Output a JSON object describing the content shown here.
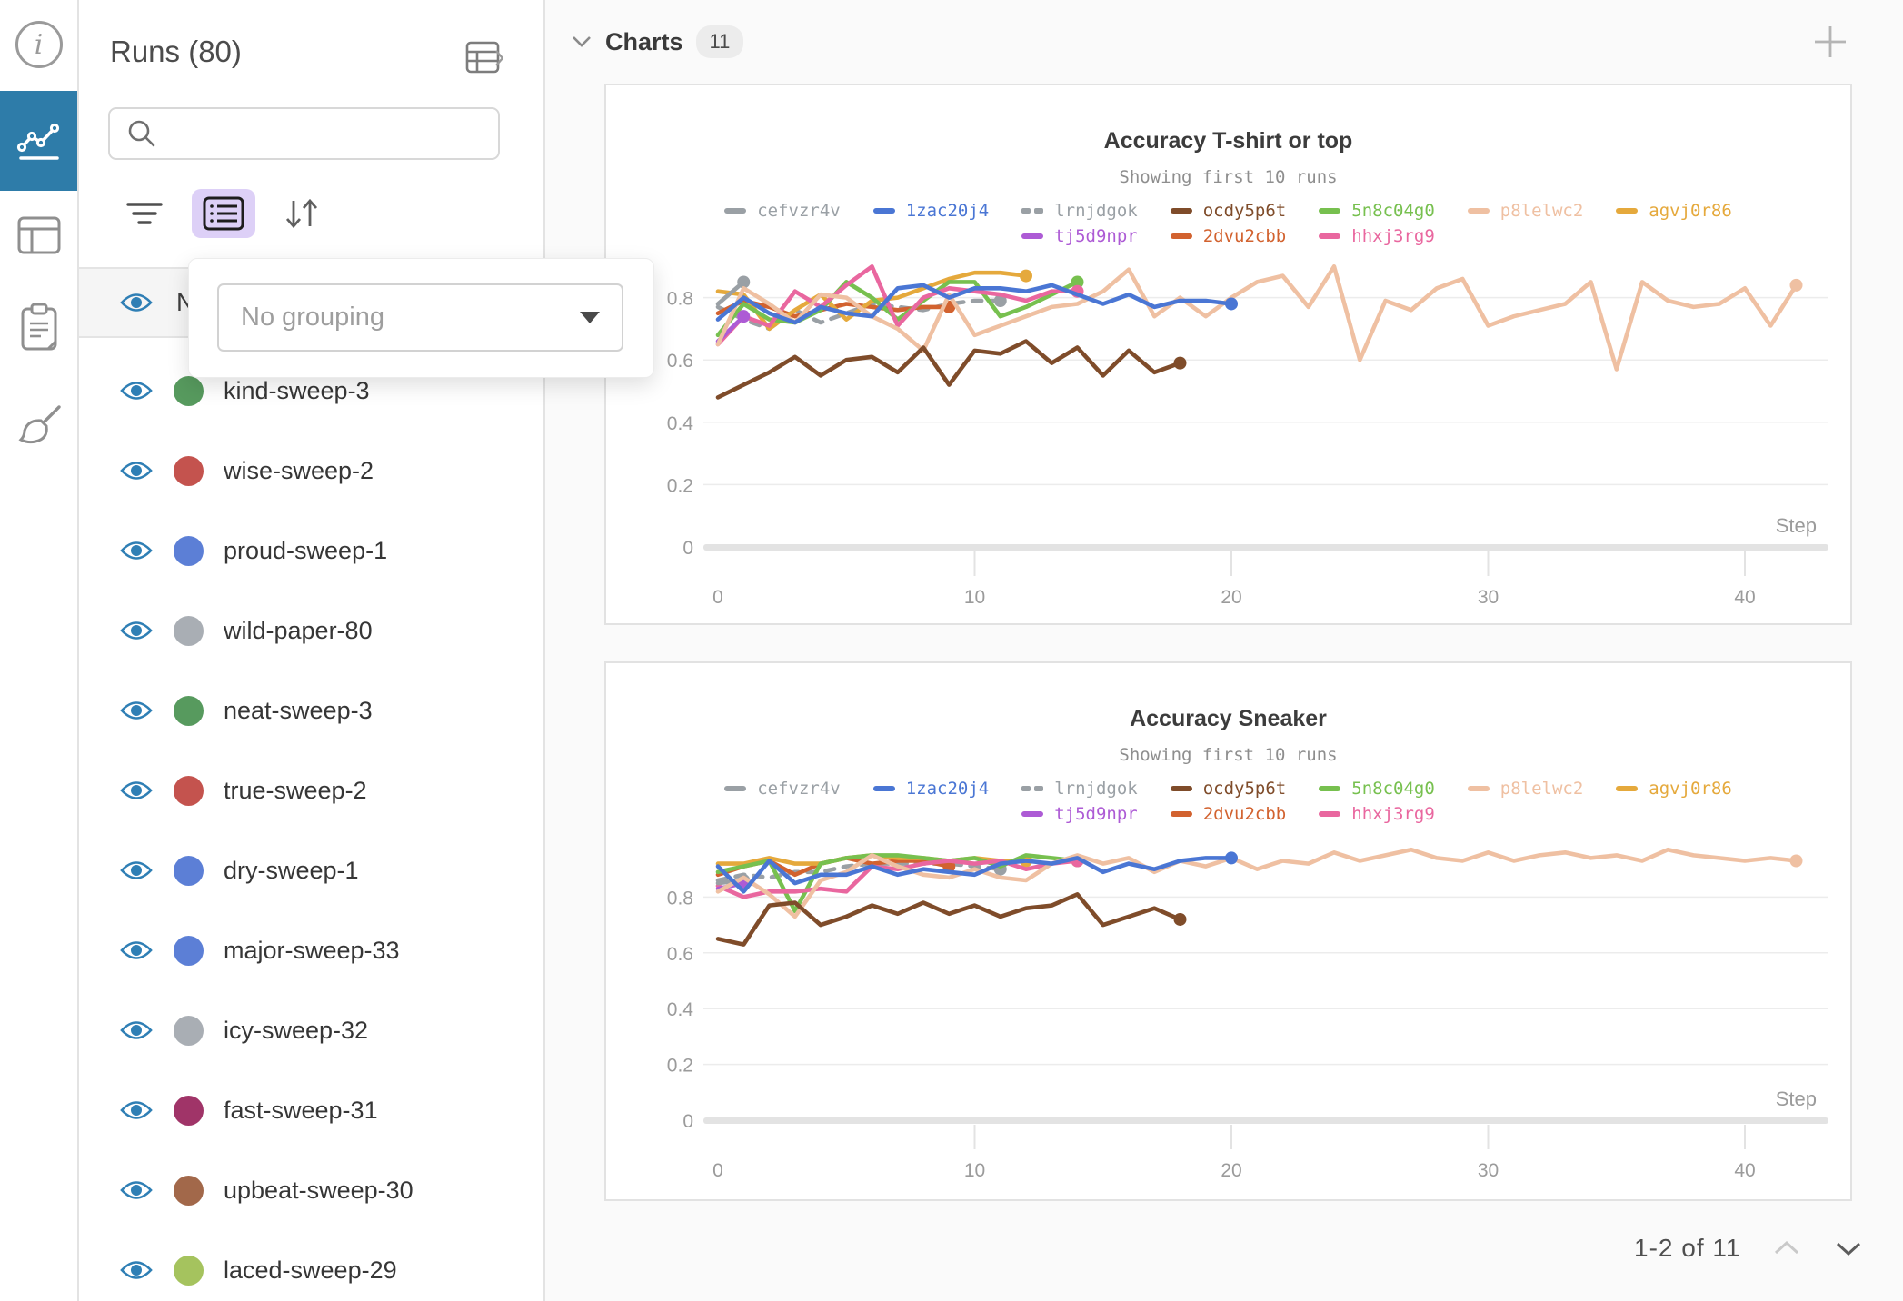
{
  "rail": {
    "icons": [
      "info-icon",
      "panels-chart-icon",
      "runs-table-icon",
      "notes-icon",
      "sweep-broom-icon"
    ],
    "active_icon": "panels-chart-icon",
    "active_color": "#2e7ca9"
  },
  "runs_panel": {
    "title": "Runs (80)",
    "expand_icon": "table-expand-icon",
    "search": {
      "placeholder": ""
    },
    "toolbar": {
      "icons": [
        "filter-icon",
        "list-settings-icon",
        "sort-icon"
      ],
      "active_bg": "#ddd0f7"
    },
    "grouping_popup": {
      "placeholder": "No grouping"
    },
    "header_row": {
      "label": "Name"
    },
    "runs": [
      {
        "name": "kind-sweep-3",
        "color": "#579a5e"
      },
      {
        "name": "wise-sweep-2",
        "color": "#c4534e"
      },
      {
        "name": "proud-sweep-1",
        "color": "#5c7fd6"
      },
      {
        "name": "wild-paper-80",
        "color": "#a9aeb4"
      },
      {
        "name": "neat-sweep-3",
        "color": "#579a5e"
      },
      {
        "name": "true-sweep-2",
        "color": "#c4534e"
      },
      {
        "name": "dry-sweep-1",
        "color": "#5c7fd6"
      },
      {
        "name": "major-sweep-33",
        "color": "#5c7fd6"
      },
      {
        "name": "icy-sweep-32",
        "color": "#a9aeb4"
      },
      {
        "name": "fast-sweep-31",
        "color": "#a03468"
      },
      {
        "name": "upbeat-sweep-30",
        "color": "#a2684a"
      },
      {
        "name": "laced-sweep-29",
        "color": "#a5c35e"
      }
    ]
  },
  "charts_section": {
    "title": "Charts",
    "count": "11",
    "add_icon": "plus-icon",
    "pagination": {
      "label": "1-2 of 11",
      "prev_icon": "chevron-up-icon",
      "next_icon": "chevron-down-icon"
    }
  },
  "palette": {
    "cefvzr4v": "#9aa0a5",
    "1zac20j4": "#4a76d4",
    "lrnjdgok": "#9aa0a5",
    "ocdy5p6t": "#7f4c2a",
    "5n8c04g0": "#77c04f",
    "p8lelwc2": "#efc0a2",
    "agvj0r86": "#e5a93c",
    "tj5d9npr": "#ad5bd5",
    "2dvu2cbb": "#d2622f",
    "hhxj3rg9": "#e9679f"
  },
  "chart_data": [
    {
      "type": "line",
      "title": "Accuracy T-shirt or top",
      "subtitle": "Showing first 10 runs",
      "xlabel": "Step",
      "xticks": [
        0,
        10,
        20,
        30,
        40
      ],
      "yticks": [
        0,
        0.2,
        0.4,
        0.6,
        0.8
      ],
      "xlim": [
        0,
        43
      ],
      "ylim": [
        0,
        0.95
      ],
      "grid": true,
      "legend_position": "top",
      "legend_rows": [
        [
          "cefvzr4v",
          "1zac20j4",
          "lrnjdgok",
          "ocdy5p6t",
          "5n8c04g0",
          "p8lelwc2",
          "agvj0r86"
        ],
        [
          "tj5d9npr",
          "2dvu2cbb",
          "hhxj3rg9"
        ]
      ],
      "series": [
        {
          "name": "lrnjdgok",
          "dash": true,
          "values": [
            0.77,
            0.73,
            0.7,
            0.76,
            0.72,
            0.75,
            0.78,
            0.77,
            0.76,
            0.78,
            0.79,
            0.79
          ]
        },
        {
          "name": "2dvu2cbb",
          "values": [
            0.75,
            0.79,
            0.77,
            0.74,
            0.76,
            0.78,
            0.77,
            0.76,
            0.77,
            0.77
          ]
        },
        {
          "name": "agvj0r86",
          "values": [
            0.82,
            0.81,
            0.7,
            0.76,
            0.81,
            0.73,
            0.79,
            0.8,
            0.83,
            0.86,
            0.88,
            0.88,
            0.87
          ]
        },
        {
          "name": "5n8c04g0",
          "values": [
            0.68,
            0.78,
            0.73,
            0.72,
            0.76,
            0.85,
            0.8,
            0.73,
            0.79,
            0.85,
            0.85,
            0.74,
            0.77,
            0.81,
            0.85
          ]
        },
        {
          "name": "hhxj3rg9",
          "values": [
            0.65,
            0.74,
            0.71,
            0.82,
            0.77,
            0.84,
            0.9,
            0.71,
            0.8,
            0.83,
            0.82,
            0.81,
            0.79,
            0.82,
            0.82
          ]
        },
        {
          "name": "cefvzr4v",
          "values": [
            0.78,
            0.85
          ]
        },
        {
          "name": "tj5d9npr",
          "values": [
            0.66,
            0.74
          ]
        },
        {
          "name": "p8lelwc2",
          "values": [
            0.65,
            0.83,
            0.78,
            0.72,
            0.81,
            0.8,
            0.74,
            0.7,
            0.63,
            0.81,
            0.68,
            0.71,
            0.74,
            0.77,
            0.78,
            0.82,
            0.89,
            0.74,
            0.8,
            0.74,
            0.8,
            0.85,
            0.87,
            0.77,
            0.9,
            0.6,
            0.79,
            0.76,
            0.83,
            0.86,
            0.71,
            0.74,
            0.76,
            0.78,
            0.85,
            0.57,
            0.85,
            0.79,
            0.77,
            0.78,
            0.83,
            0.71,
            0.84
          ]
        },
        {
          "name": "ocdy5p6t",
          "values": [
            0.48,
            0.52,
            0.56,
            0.61,
            0.55,
            0.6,
            0.61,
            0.56,
            0.64,
            0.52,
            0.63,
            0.62,
            0.66,
            0.59,
            0.64,
            0.55,
            0.63,
            0.56,
            0.59
          ]
        },
        {
          "name": "1zac20j4",
          "values": [
            0.73,
            0.8,
            0.75,
            0.72,
            0.77,
            0.75,
            0.74,
            0.83,
            0.84,
            0.8,
            0.83,
            0.83,
            0.82,
            0.84,
            0.81,
            0.78,
            0.81,
            0.77,
            0.79,
            0.79,
            0.78
          ]
        }
      ]
    },
    {
      "type": "line",
      "title": "Accuracy Sneaker",
      "subtitle": "Showing first 10 runs",
      "xlabel": "Step",
      "xticks": [
        0,
        10,
        20,
        30,
        40
      ],
      "yticks": [
        0,
        0.2,
        0.4,
        0.6,
        0.8
      ],
      "xlim": [
        0,
        43
      ],
      "ylim": [
        0,
        1.0
      ],
      "grid": true,
      "legend_position": "top",
      "legend_rows": [
        [
          "cefvzr4v",
          "1zac20j4",
          "lrnjdgok",
          "ocdy5p6t",
          "5n8c04g0",
          "p8lelwc2",
          "agvj0r86"
        ],
        [
          "tj5d9npr",
          "2dvu2cbb",
          "hhxj3rg9"
        ]
      ],
      "series": [
        {
          "name": "lrnjdgok",
          "dash": true,
          "values": [
            0.86,
            0.88,
            0.87,
            0.89,
            0.89,
            0.91,
            0.92,
            0.92,
            0.92,
            0.92,
            0.91,
            0.9
          ]
        },
        {
          "name": "2dvu2cbb",
          "values": [
            0.88,
            0.91,
            0.93,
            0.88,
            0.92,
            0.94,
            0.92,
            0.93,
            0.93,
            0.91
          ]
        },
        {
          "name": "agvj0r86",
          "values": [
            0.92,
            0.92,
            0.94,
            0.92,
            0.92,
            0.94,
            0.95,
            0.94,
            0.94,
            0.93,
            0.94,
            0.93,
            0.93
          ]
        },
        {
          "name": "5n8c04g0",
          "values": [
            0.89,
            0.91,
            0.93,
            0.75,
            0.92,
            0.94,
            0.95,
            0.95,
            0.94,
            0.93,
            0.94,
            0.91,
            0.95,
            0.94,
            0.93
          ]
        },
        {
          "name": "hhxj3rg9",
          "values": [
            0.84,
            0.8,
            0.82,
            0.82,
            0.83,
            0.82,
            0.91,
            0.9,
            0.92,
            0.93,
            0.92,
            0.93,
            0.9,
            0.92,
            0.93
          ]
        },
        {
          "name": "cefvzr4v",
          "values": [
            0.85,
            0.86
          ]
        },
        {
          "name": "tj5d9npr",
          "values": [
            0.83,
            0.85
          ]
        },
        {
          "name": "p8lelwc2",
          "values": [
            0.82,
            0.87,
            0.81,
            0.73,
            0.86,
            0.89,
            0.95,
            0.91,
            0.88,
            0.87,
            0.9,
            0.87,
            0.86,
            0.92,
            0.95,
            0.92,
            0.94,
            0.89,
            0.93,
            0.91,
            0.94,
            0.9,
            0.93,
            0.92,
            0.96,
            0.93,
            0.95,
            0.97,
            0.94,
            0.93,
            0.96,
            0.93,
            0.95,
            0.96,
            0.94,
            0.95,
            0.93,
            0.97,
            0.95,
            0.94,
            0.93,
            0.94,
            0.93
          ]
        },
        {
          "name": "ocdy5p6t",
          "values": [
            0.65,
            0.63,
            0.77,
            0.78,
            0.7,
            0.73,
            0.77,
            0.74,
            0.78,
            0.74,
            0.77,
            0.73,
            0.76,
            0.77,
            0.81,
            0.7,
            0.73,
            0.76,
            0.72
          ]
        },
        {
          "name": "1zac20j4",
          "values": [
            0.91,
            0.82,
            0.93,
            0.85,
            0.88,
            0.88,
            0.91,
            0.88,
            0.9,
            0.89,
            0.88,
            0.92,
            0.93,
            0.92,
            0.94,
            0.89,
            0.92,
            0.9,
            0.93,
            0.94,
            0.94
          ]
        }
      ]
    }
  ]
}
